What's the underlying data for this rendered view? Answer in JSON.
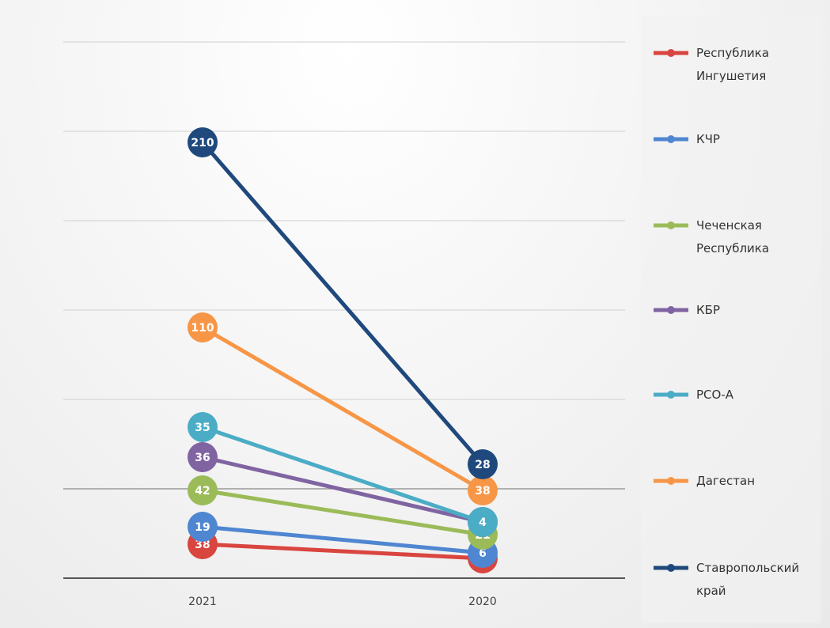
{
  "chart_data": {
    "type": "line",
    "categories": [
      "2021",
      "2020"
    ],
    "series": [
      {
        "name": "Республика Ингушетия",
        "color": "#d9453f",
        "values": [
          38,
          2
        ],
        "labels": [
          "38",
          "2"
        ]
      },
      {
        "name": "КЧР",
        "color": "#4f86d1",
        "values": [
          19,
          6
        ],
        "labels": [
          "19",
          "6"
        ]
      },
      {
        "name": "Чеченская Республика",
        "color": "#9bbb59",
        "values": [
          42,
          21
        ],
        "labels": [
          "42",
          "21"
        ]
      },
      {
        "name": "КБР",
        "color": "#8064a2",
        "values": [
          36,
          4
        ],
        "labels": [
          "36",
          "4"
        ]
      },
      {
        "name": "РСО-А",
        "color": "#4bacc6",
        "values": [
          35,
          4
        ],
        "labels": [
          "35",
          "4"
        ]
      },
      {
        "name": "Дагестан",
        "color": "#f79646",
        "values": [
          110,
          38
        ],
        "labels": [
          "110",
          "38"
        ]
      },
      {
        "name": "Ставропольский край",
        "color": "#1f497d",
        "values": [
          210,
          28
        ],
        "labels": [
          "210",
          "28"
        ]
      }
    ],
    "legend_lines": [
      [
        "Республика",
        "Ингушетия"
      ],
      [
        "КЧР"
      ],
      [
        "Чеченская",
        "Республика"
      ],
      [
        "КБР"
      ],
      [
        "РСО-А"
      ],
      [
        "Дагестан"
      ],
      [
        "Ставропольский",
        "край"
      ]
    ],
    "legend_position": "right",
    "grid": true
  }
}
